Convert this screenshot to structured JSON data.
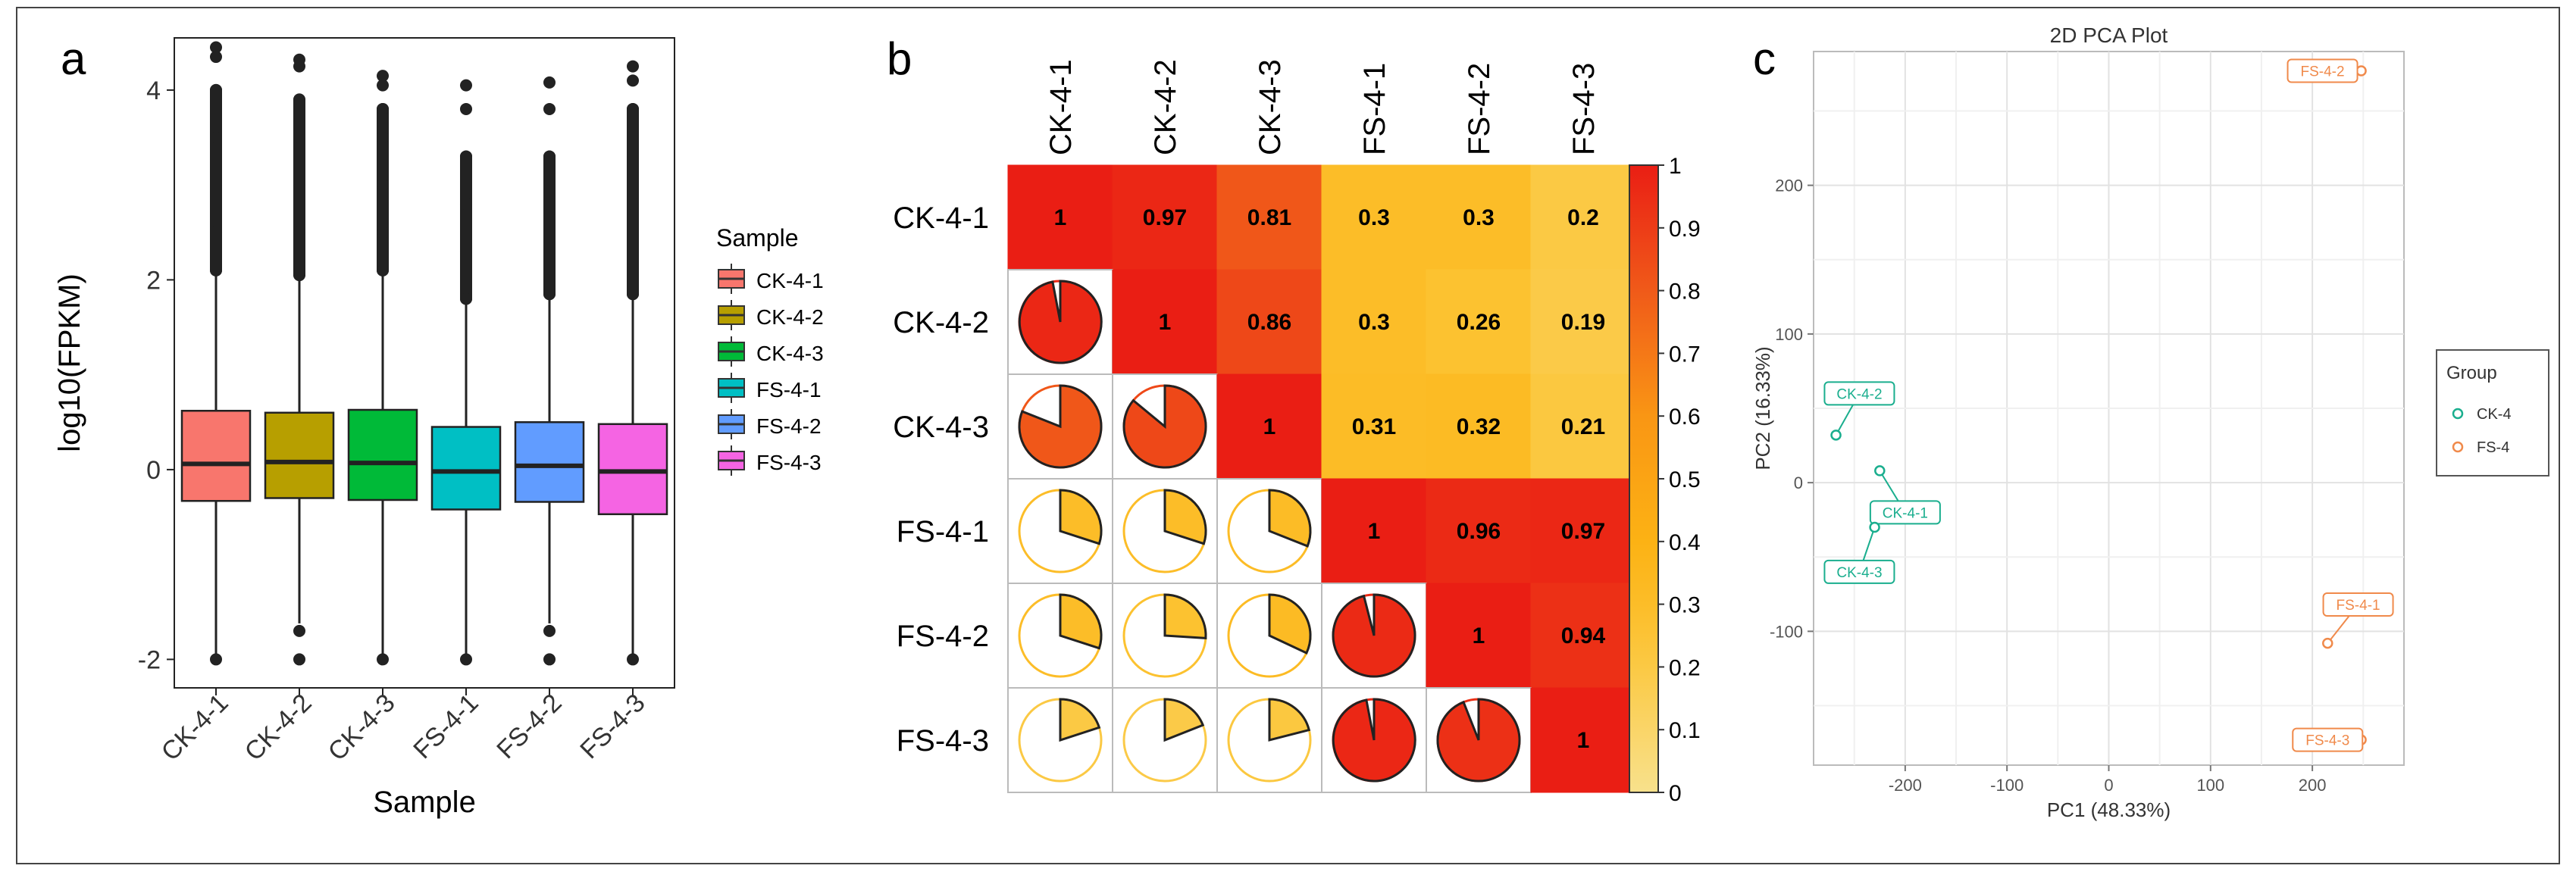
{
  "panels": {
    "a": {
      "letter": "a"
    },
    "b": {
      "letter": "b"
    },
    "c": {
      "letter": "c"
    }
  },
  "chart_data": [
    {
      "type": "boxplot",
      "title": "",
      "xlabel": "Sample",
      "ylabel": "log10(FPKM)",
      "ylim": [
        -2.3,
        4.55
      ],
      "yticks": [
        -2,
        0,
        2,
        4
      ],
      "legend": {
        "title": "Sample",
        "position": "right"
      },
      "boxes": [
        {
          "name": "CK-4-1",
          "color": "#F8766D",
          "q1": -0.33,
          "median": 0.06,
          "q3": 0.62,
          "whisker_low": -1.98,
          "whisker_high": 2.05,
          "outliers_high": [
            2.1,
            2.5,
            3.0,
            3.5,
            4.0,
            4.35,
            4.45
          ],
          "outliers_low": [
            -2.0
          ]
        },
        {
          "name": "CK-4-2",
          "color": "#B79F00",
          "q1": -0.3,
          "median": 0.08,
          "q3": 0.6,
          "whisker_low": -1.62,
          "whisker_high": 2.0,
          "outliers_high": [
            2.05,
            2.5,
            3.0,
            3.5,
            3.9,
            4.25,
            4.32
          ],
          "outliers_low": [
            -1.7,
            -2.0
          ]
        },
        {
          "name": "CK-4-3",
          "color": "#00BA38",
          "q1": -0.32,
          "median": 0.07,
          "q3": 0.63,
          "whisker_low": -1.98,
          "whisker_high": 2.05,
          "outliers_high": [
            2.1,
            2.5,
            3.0,
            3.5,
            3.8,
            4.05,
            4.15
          ],
          "outliers_low": [
            -2.0
          ]
        },
        {
          "name": "FS-4-1",
          "color": "#00BFC4",
          "q1": -0.42,
          "median": -0.02,
          "q3": 0.45,
          "whisker_low": -1.98,
          "whisker_high": 1.75,
          "outliers_high": [
            1.8,
            2.3,
            2.8,
            3.3,
            3.8,
            4.05
          ],
          "outliers_low": [
            -2.0
          ]
        },
        {
          "name": "FS-4-2",
          "color": "#619CFF",
          "q1": -0.34,
          "median": 0.04,
          "q3": 0.5,
          "whisker_low": -1.62,
          "whisker_high": 1.8,
          "outliers_high": [
            1.85,
            2.3,
            2.8,
            3.3,
            3.8,
            4.08
          ],
          "outliers_low": [
            -1.7,
            -2.0
          ]
        },
        {
          "name": "FS-4-3",
          "color": "#F564E3",
          "q1": -0.47,
          "median": -0.02,
          "q3": 0.48,
          "whisker_low": -1.98,
          "whisker_high": 1.8,
          "outliers_high": [
            1.85,
            2.3,
            2.8,
            3.3,
            3.8,
            4.1,
            4.25
          ],
          "outliers_low": [
            -2.0
          ]
        }
      ]
    },
    {
      "type": "heatmap",
      "title": "",
      "labels": [
        "CK-4-1",
        "CK-4-2",
        "CK-4-3",
        "FS-4-1",
        "FS-4-2",
        "FS-4-3"
      ],
      "upper_values": [
        [
          1,
          0.97,
          0.81,
          0.3,
          0.3,
          0.2
        ],
        [
          null,
          1,
          0.86,
          0.3,
          0.26,
          0.19
        ],
        [
          null,
          null,
          1,
          0.31,
          0.32,
          0.21
        ],
        [
          null,
          null,
          null,
          1,
          0.96,
          0.97
        ],
        [
          null,
          null,
          null,
          null,
          1,
          0.94
        ],
        [
          null,
          null,
          null,
          null,
          null,
          1
        ]
      ],
      "lower_style": "pie",
      "colorbar": {
        "min": 0,
        "max": 1,
        "ticks": [
          "0",
          "0.1",
          "0.2",
          "0.3",
          "0.4",
          "0.5",
          "0.6",
          "0.7",
          "0.8",
          "0.9",
          "1"
        ]
      }
    },
    {
      "type": "scatter",
      "title": "2D PCA Plot",
      "xlabel": "PC1 (48.33%)",
      "ylabel": "PC2 (16.33%)",
      "xlim": [
        -290,
        290
      ],
      "ylim": [
        -190,
        290
      ],
      "xticks": [
        "-200",
        "-100",
        "0",
        "100",
        "200"
      ],
      "yticks": [
        "-100",
        "0",
        "100",
        "200"
      ],
      "legend": {
        "title": "Group",
        "position": "right",
        "entries": [
          {
            "name": "CK-4",
            "color": "#1AAE8E"
          },
          {
            "name": "FS-4",
            "color": "#F08A4B"
          }
        ]
      },
      "points": [
        {
          "name": "CK-4-1",
          "group": "CK-4",
          "x": -225,
          "y": 8,
          "label_x": -200,
          "label_y": -20
        },
        {
          "name": "CK-4-2",
          "group": "CK-4",
          "x": -268,
          "y": 32,
          "label_x": -245,
          "label_y": 60
        },
        {
          "name": "CK-4-3",
          "group": "CK-4",
          "x": -230,
          "y": -30,
          "label_x": -245,
          "label_y": -60
        },
        {
          "name": "FS-4-1",
          "group": "FS-4",
          "x": 215,
          "y": -108,
          "label_x": 245,
          "label_y": -82
        },
        {
          "name": "FS-4-2",
          "group": "FS-4",
          "x": 248,
          "y": 277,
          "label_x": 210,
          "label_y": 277
        },
        {
          "name": "FS-4-3",
          "group": "FS-4",
          "x": 248,
          "y": -173,
          "label_x": 215,
          "label_y": -173
        }
      ]
    }
  ]
}
